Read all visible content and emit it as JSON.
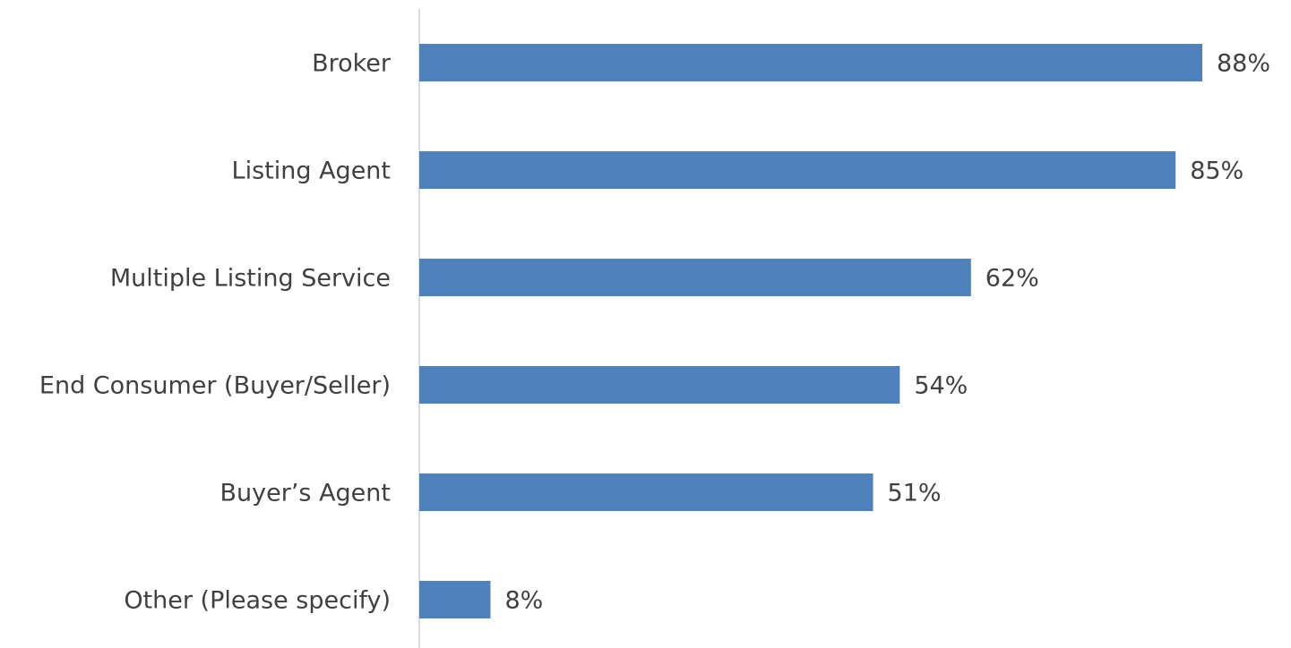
{
  "chart_data": {
    "type": "bar",
    "orientation": "horizontal",
    "categories": [
      "Broker",
      "Listing Agent",
      "Multiple Listing Service",
      "End Consumer (Buyer/Seller)",
      "Buyer’s Agent",
      "Other (Please specify)"
    ],
    "values": [
      88,
      85,
      62,
      54,
      51,
      8
    ],
    "value_labels": [
      "88%",
      "85%",
      "62%",
      "54%",
      "51%",
      "8%"
    ],
    "color": "#4f81bd"
  }
}
